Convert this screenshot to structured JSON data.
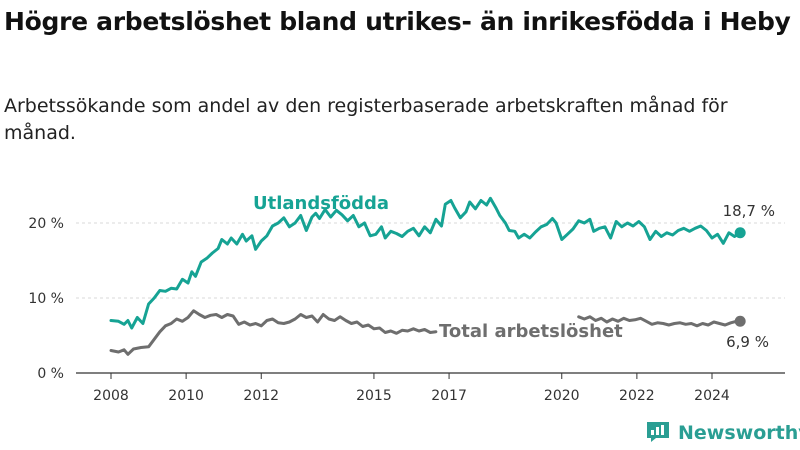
{
  "title": "Högre arbetslöshet bland utrikes- än inrikesfödda i Heby",
  "subtitle": "Arbetssökande som andel av den registerbaserade arbetskraften månad för månad.",
  "brand": {
    "name": "Newsworthy",
    "icon": "newsworthy-logo-icon"
  },
  "colors": {
    "foreign_born": "#16a394",
    "total": "#6e6e6e",
    "grid": "#d9d9d9"
  },
  "chart_data": {
    "type": "line",
    "title": "Högre arbetslöshet bland utrikes- än inrikesfödda i Heby",
    "subtitle": "Arbetssökande som andel av den registerbaserade arbetskraften månad för månad.",
    "xlabel": "",
    "ylabel": "",
    "ylim": [
      0,
      24
    ],
    "xlim": [
      2007.5,
      2025.2
    ],
    "y_ticks": [
      0,
      10,
      20
    ],
    "y_tick_labels": [
      "0 %",
      "10 %",
      "20 %"
    ],
    "x_ticks": [
      2008,
      2010,
      2012,
      2015,
      2017,
      2020,
      2022,
      2024
    ],
    "x_tick_labels": [
      "2008",
      "2010",
      "2012",
      "2015",
      "2017",
      "2020",
      "2022",
      "2024"
    ],
    "grid": true,
    "series": [
      {
        "name": "Utlandsfödda",
        "color": "#16a394",
        "end_label": "18,7 %",
        "points": [
          [
            2008.0,
            7.0
          ],
          [
            2008.2,
            6.9
          ],
          [
            2008.35,
            6.5
          ],
          [
            2008.45,
            7.0
          ],
          [
            2008.55,
            6.0
          ],
          [
            2008.7,
            7.4
          ],
          [
            2008.85,
            6.6
          ],
          [
            2009.0,
            9.2
          ],
          [
            2009.15,
            10.0
          ],
          [
            2009.3,
            11.0
          ],
          [
            2009.45,
            10.9
          ],
          [
            2009.6,
            11.3
          ],
          [
            2009.75,
            11.2
          ],
          [
            2009.9,
            12.5
          ],
          [
            2010.05,
            12.0
          ],
          [
            2010.15,
            13.5
          ],
          [
            2010.25,
            12.9
          ],
          [
            2010.4,
            14.8
          ],
          [
            2010.55,
            15.3
          ],
          [
            2010.7,
            16.0
          ],
          [
            2010.85,
            16.6
          ],
          [
            2010.95,
            17.8
          ],
          [
            2011.1,
            17.2
          ],
          [
            2011.2,
            18.0
          ],
          [
            2011.35,
            17.2
          ],
          [
            2011.5,
            18.5
          ],
          [
            2011.6,
            17.6
          ],
          [
            2011.75,
            18.3
          ],
          [
            2011.85,
            16.5
          ],
          [
            2012.0,
            17.6
          ],
          [
            2012.15,
            18.3
          ],
          [
            2012.3,
            19.6
          ],
          [
            2012.45,
            20.0
          ],
          [
            2012.6,
            20.7
          ],
          [
            2012.75,
            19.5
          ],
          [
            2012.9,
            20.0
          ],
          [
            2013.05,
            21.0
          ],
          [
            2013.2,
            19.0
          ],
          [
            2013.35,
            20.8
          ],
          [
            2013.45,
            21.3
          ],
          [
            2013.55,
            20.6
          ],
          [
            2013.7,
            21.8
          ],
          [
            2013.85,
            20.8
          ],
          [
            2014.0,
            21.7
          ],
          [
            2014.15,
            21.1
          ],
          [
            2014.3,
            20.3
          ],
          [
            2014.45,
            21.0
          ],
          [
            2014.6,
            19.5
          ],
          [
            2014.75,
            20.0
          ],
          [
            2014.9,
            18.3
          ],
          [
            2015.05,
            18.5
          ],
          [
            2015.2,
            19.5
          ],
          [
            2015.3,
            18.0
          ],
          [
            2015.45,
            18.9
          ],
          [
            2015.6,
            18.6
          ],
          [
            2015.75,
            18.2
          ],
          [
            2015.9,
            18.9
          ],
          [
            2016.05,
            19.3
          ],
          [
            2016.2,
            18.3
          ],
          [
            2016.35,
            19.5
          ],
          [
            2016.5,
            18.7
          ],
          [
            2016.65,
            20.5
          ],
          [
            2016.8,
            19.6
          ],
          [
            2016.9,
            22.5
          ],
          [
            2017.05,
            23.0
          ],
          [
            2017.15,
            22.0
          ],
          [
            2017.3,
            20.7
          ],
          [
            2017.45,
            21.5
          ],
          [
            2017.55,
            22.8
          ],
          [
            2017.7,
            21.9
          ],
          [
            2017.85,
            23.0
          ],
          [
            2018.0,
            22.4
          ],
          [
            2018.1,
            23.3
          ],
          [
            2018.25,
            22.0
          ],
          [
            2018.35,
            21.0
          ],
          [
            2018.5,
            20.0
          ],
          [
            2018.6,
            19.0
          ],
          [
            2018.75,
            18.9
          ],
          [
            2018.85,
            18.0
          ],
          [
            2019.0,
            18.5
          ],
          [
            2019.15,
            18.0
          ],
          [
            2019.3,
            18.8
          ],
          [
            2019.45,
            19.5
          ],
          [
            2019.6,
            19.8
          ],
          [
            2019.75,
            20.6
          ],
          [
            2019.85,
            20.0
          ],
          [
            2020.0,
            17.8
          ],
          [
            2020.15,
            18.5
          ],
          [
            2020.3,
            19.2
          ],
          [
            2020.45,
            20.3
          ],
          [
            2020.6,
            20.0
          ],
          [
            2020.75,
            20.5
          ],
          [
            2020.85,
            18.9
          ],
          [
            2021.0,
            19.3
          ],
          [
            2021.15,
            19.5
          ],
          [
            2021.3,
            18.0
          ],
          [
            2021.45,
            20.2
          ],
          [
            2021.6,
            19.5
          ],
          [
            2021.75,
            20.0
          ],
          [
            2021.9,
            19.6
          ],
          [
            2022.05,
            20.2
          ],
          [
            2022.2,
            19.5
          ],
          [
            2022.35,
            17.8
          ],
          [
            2022.5,
            18.9
          ],
          [
            2022.65,
            18.2
          ],
          [
            2022.8,
            18.7
          ],
          [
            2022.95,
            18.4
          ],
          [
            2023.1,
            19.0
          ],
          [
            2023.25,
            19.3
          ],
          [
            2023.4,
            18.9
          ],
          [
            2023.55,
            19.3
          ],
          [
            2023.7,
            19.6
          ],
          [
            2023.85,
            19.0
          ],
          [
            2024.0,
            18.0
          ],
          [
            2024.15,
            18.5
          ],
          [
            2024.3,
            17.3
          ],
          [
            2024.45,
            18.7
          ],
          [
            2024.6,
            18.2
          ],
          [
            2024.75,
            18.7
          ]
        ]
      },
      {
        "name": "Total arbetslöshet",
        "color": "#6e6e6e",
        "end_label": "6,9 %",
        "points": [
          [
            2008.0,
            3.0
          ],
          [
            2008.2,
            2.8
          ],
          [
            2008.35,
            3.1
          ],
          [
            2008.45,
            2.5
          ],
          [
            2008.6,
            3.2
          ],
          [
            2008.8,
            3.4
          ],
          [
            2009.0,
            3.5
          ],
          [
            2009.15,
            4.5
          ],
          [
            2009.3,
            5.5
          ],
          [
            2009.45,
            6.3
          ],
          [
            2009.6,
            6.6
          ],
          [
            2009.75,
            7.2
          ],
          [
            2009.9,
            6.9
          ],
          [
            2010.05,
            7.4
          ],
          [
            2010.2,
            8.3
          ],
          [
            2010.35,
            7.8
          ],
          [
            2010.5,
            7.4
          ],
          [
            2010.65,
            7.7
          ],
          [
            2010.8,
            7.8
          ],
          [
            2010.95,
            7.4
          ],
          [
            2011.1,
            7.8
          ],
          [
            2011.25,
            7.6
          ],
          [
            2011.4,
            6.5
          ],
          [
            2011.55,
            6.8
          ],
          [
            2011.7,
            6.4
          ],
          [
            2011.85,
            6.6
          ],
          [
            2012.0,
            6.3
          ],
          [
            2012.15,
            7.0
          ],
          [
            2012.3,
            7.2
          ],
          [
            2012.45,
            6.7
          ],
          [
            2012.6,
            6.6
          ],
          [
            2012.75,
            6.8
          ],
          [
            2012.9,
            7.2
          ],
          [
            2013.05,
            7.8
          ],
          [
            2013.2,
            7.4
          ],
          [
            2013.35,
            7.6
          ],
          [
            2013.5,
            6.8
          ],
          [
            2013.65,
            7.8
          ],
          [
            2013.8,
            7.2
          ],
          [
            2013.95,
            7.0
          ],
          [
            2014.1,
            7.5
          ],
          [
            2014.25,
            7.0
          ],
          [
            2014.4,
            6.6
          ],
          [
            2014.55,
            6.8
          ],
          [
            2014.7,
            6.2
          ],
          [
            2014.85,
            6.4
          ],
          [
            2015.0,
            5.9
          ],
          [
            2015.15,
            6.0
          ],
          [
            2015.3,
            5.4
          ],
          [
            2015.45,
            5.6
          ],
          [
            2015.6,
            5.3
          ],
          [
            2015.75,
            5.7
          ],
          [
            2015.9,
            5.6
          ],
          [
            2016.05,
            5.9
          ],
          [
            2016.2,
            5.6
          ],
          [
            2016.35,
            5.8
          ],
          [
            2016.5,
            5.4
          ],
          [
            2016.65,
            5.5
          ],
          [
            2020.45,
            7.5
          ],
          [
            2020.6,
            7.2
          ],
          [
            2020.75,
            7.5
          ],
          [
            2020.9,
            7.0
          ],
          [
            2021.05,
            7.3
          ],
          [
            2021.2,
            6.8
          ],
          [
            2021.35,
            7.2
          ],
          [
            2021.5,
            6.9
          ],
          [
            2021.65,
            7.3
          ],
          [
            2021.8,
            7.0
          ],
          [
            2021.95,
            7.1
          ],
          [
            2022.1,
            7.3
          ],
          [
            2022.25,
            6.9
          ],
          [
            2022.4,
            6.5
          ],
          [
            2022.55,
            6.7
          ],
          [
            2022.7,
            6.6
          ],
          [
            2022.85,
            6.4
          ],
          [
            2023.0,
            6.6
          ],
          [
            2023.15,
            6.7
          ],
          [
            2023.3,
            6.5
          ],
          [
            2023.45,
            6.6
          ],
          [
            2023.6,
            6.3
          ],
          [
            2023.75,
            6.6
          ],
          [
            2023.9,
            6.4
          ],
          [
            2024.05,
            6.8
          ],
          [
            2024.2,
            6.6
          ],
          [
            2024.35,
            6.4
          ],
          [
            2024.5,
            6.7
          ],
          [
            2024.65,
            6.9
          ],
          [
            2024.75,
            6.9
          ]
        ]
      }
    ]
  }
}
